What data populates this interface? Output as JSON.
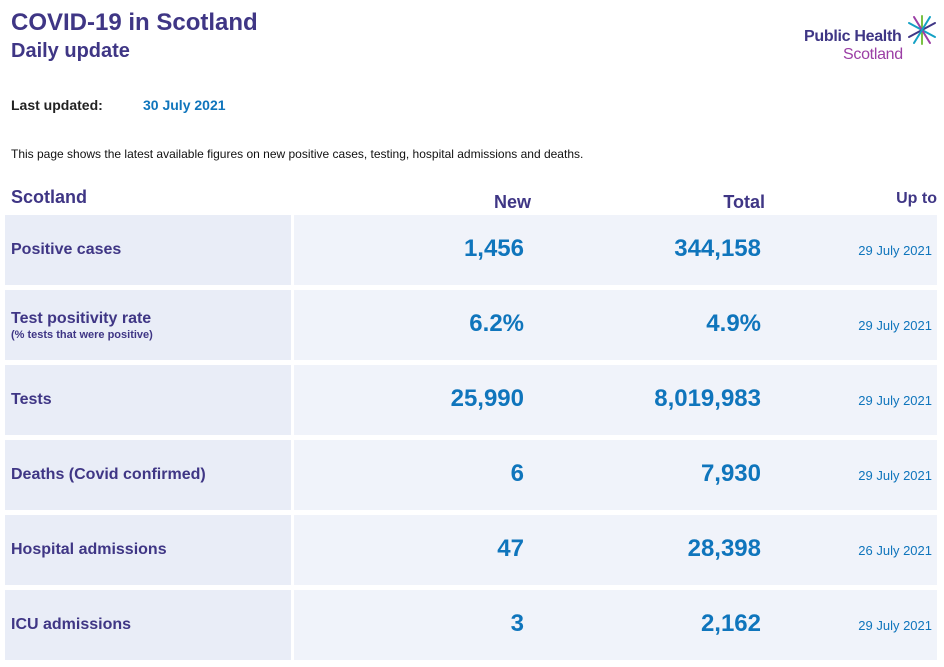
{
  "header": {
    "title": "COVID-19 in Scotland",
    "subtitle": "Daily update"
  },
  "logo": {
    "line1": "Public Health",
    "line2": "Scotland",
    "colors": [
      "#3f3685",
      "#9b3ea5",
      "#13a1c4",
      "#7ac143"
    ]
  },
  "updated": {
    "label": "Last updated:",
    "value": "30 July 2021"
  },
  "intro": "This page shows the latest available figures on new positive cases, testing, hospital admissions and deaths.",
  "table": {
    "headers": {
      "area": "Scotland",
      "new": "New",
      "total": "Total",
      "upto": "Up to"
    },
    "rows": [
      {
        "label": "Positive cases",
        "sublabel": "",
        "new": "1,456",
        "total": "344,158",
        "upto": "29 July 2021"
      },
      {
        "label": "Test positivity rate",
        "sublabel": "(% tests that were positive)",
        "new": "6.2%",
        "total": "4.9%",
        "upto": "29 July 2021"
      },
      {
        "label": "Tests",
        "sublabel": "",
        "new": "25,990",
        "total": "8,019,983",
        "upto": "29 July 2021"
      },
      {
        "label": "Deaths (Covid confirmed)",
        "sublabel": "",
        "new": "6",
        "total": "7,930",
        "upto": "29 July 2021"
      },
      {
        "label": "Hospital admissions",
        "sublabel": "",
        "new": "47",
        "total": "28,398",
        "upto": "26 July 2021"
      },
      {
        "label": "ICU admissions",
        "sublabel": "",
        "new": "3",
        "total": "2,162",
        "upto": "29 July 2021"
      }
    ]
  },
  "colors": {
    "heading": "#3f3685",
    "value": "#0f75bc",
    "label_cell": "#e9edf7",
    "value_cell": "#f0f3fa"
  }
}
